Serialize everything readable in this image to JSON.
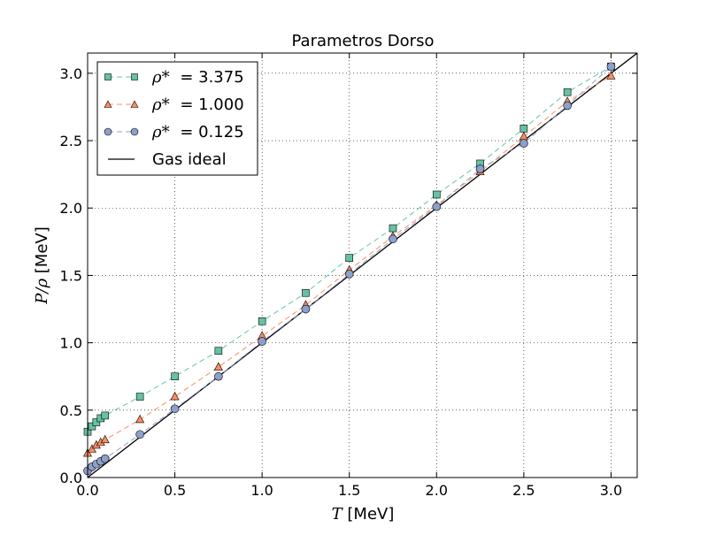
{
  "chart_data": {
    "type": "scatter",
    "title": "Parametros Dorso",
    "xlabel": {
      "symbol": "T",
      "unit": "[MeV]"
    },
    "ylabel": {
      "symbol": "P/ρ",
      "unit": "[MeV]"
    },
    "xlim": [
      0.0,
      3.15
    ],
    "ylim": [
      0.0,
      3.15
    ],
    "xticks": [
      0.0,
      0.5,
      1.0,
      1.5,
      2.0,
      2.5,
      3.0
    ],
    "yticks": [
      0.0,
      0.5,
      1.0,
      1.5,
      2.0,
      2.5,
      3.0
    ],
    "xtick_labels": [
      "0.0",
      "0.5",
      "1.0",
      "1.5",
      "2.0",
      "2.5",
      "3.0"
    ],
    "ytick_labels": [
      "0.0",
      "0.5",
      "1.0",
      "1.5",
      "2.0",
      "2.5",
      "3.0"
    ],
    "grid": true,
    "legend_position": "top-left",
    "series": [
      {
        "name_symbol": "ρ*",
        "name_value": "= 3.375",
        "marker": "square",
        "linestyle": "dashed",
        "color": "#66c2a5",
        "x": [
          0.0,
          0.025,
          0.05,
          0.075,
          0.1,
          0.3,
          0.5,
          0.75,
          1.0,
          1.25,
          1.5,
          1.75,
          2.0,
          2.25,
          2.5,
          2.75,
          3.0
        ],
        "y": [
          0.34,
          0.38,
          0.41,
          0.44,
          0.46,
          0.6,
          0.75,
          0.94,
          1.16,
          1.37,
          1.63,
          1.85,
          2.1,
          2.33,
          2.59,
          2.86,
          3.05
        ]
      },
      {
        "name_symbol": "ρ*",
        "name_value": "= 1.000",
        "marker": "triangle",
        "linestyle": "dashed",
        "color": "#fc8d62",
        "x": [
          0.0,
          0.025,
          0.05,
          0.075,
          0.1,
          0.3,
          0.5,
          0.75,
          1.0,
          1.25,
          1.5,
          1.75,
          2.0,
          2.25,
          2.5,
          2.75,
          3.0
        ],
        "y": [
          0.18,
          0.21,
          0.24,
          0.26,
          0.28,
          0.43,
          0.6,
          0.82,
          1.05,
          1.28,
          1.54,
          1.79,
          2.02,
          2.27,
          2.53,
          2.79,
          2.98
        ]
      },
      {
        "name_symbol": "ρ*",
        "name_value": "= 0.125",
        "marker": "circle",
        "linestyle": "dashed",
        "color": "#8da0cb",
        "x": [
          0.0,
          0.025,
          0.05,
          0.075,
          0.1,
          0.3,
          0.5,
          0.75,
          1.0,
          1.25,
          1.5,
          1.75,
          2.0,
          2.25,
          2.5,
          2.75,
          3.0
        ],
        "y": [
          0.05,
          0.08,
          0.1,
          0.12,
          0.14,
          0.32,
          0.51,
          0.75,
          1.01,
          1.25,
          1.51,
          1.77,
          2.01,
          2.29,
          2.48,
          2.76,
          3.05
        ]
      },
      {
        "name": "Gas ideal",
        "marker": "none",
        "linestyle": "solid",
        "color": "#000000",
        "x": [
          0.0,
          3.15
        ],
        "y": [
          0.0,
          3.15
        ]
      }
    ]
  }
}
